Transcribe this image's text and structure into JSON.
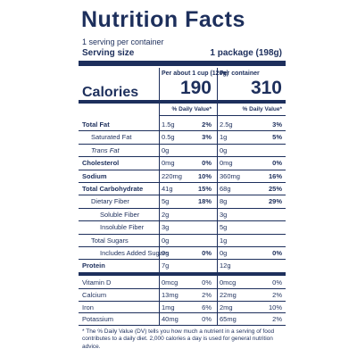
{
  "header": {
    "title": "Nutrition Facts",
    "servings": "1 serving per container",
    "serving_size_label": "Serving size",
    "serving_size": "1 package (198g)"
  },
  "calories_label": "Calories",
  "columns": [
    {
      "heading": "Per about 1 cup (120g)",
      "calories": "190",
      "dv_heading": "% Daily Value*"
    },
    {
      "heading": "Per container",
      "calories": "310",
      "dv_heading": "% Daily Value*"
    }
  ],
  "rows": [
    {
      "label": "Total Fat",
      "values": [
        [
          "1.5g",
          "2%"
        ],
        [
          "2.5g",
          "3%"
        ]
      ]
    },
    {
      "label": "Saturated Fat",
      "values": [
        [
          "0.5g",
          "3%"
        ],
        [
          "1g",
          "5%"
        ]
      ]
    },
    {
      "label": "Trans Fat",
      "values": [
        [
          "0g"
        ],
        [
          "0g"
        ]
      ]
    },
    {
      "label": "Cholesterol",
      "values": [
        [
          "0mg",
          "0%"
        ],
        [
          "0mg",
          "0%"
        ]
      ]
    },
    {
      "label": "Sodium",
      "values": [
        [
          "220mg",
          "10%"
        ],
        [
          "360mg",
          "16%"
        ]
      ]
    },
    {
      "label": "Total Carbohydrate",
      "values": [
        [
          "41g",
          "15%"
        ],
        [
          "68g",
          "25%"
        ]
      ]
    },
    {
      "label": "Dietary Fiber",
      "values": [
        [
          "5g",
          "18%"
        ],
        [
          "8g",
          "29%"
        ]
      ]
    },
    {
      "label": "Soluble Fiber",
      "values": [
        [
          "2g"
        ],
        [
          "3g"
        ]
      ]
    },
    {
      "label": "Insoluble Fiber",
      "values": [
        [
          "3g"
        ],
        [
          "5g"
        ]
      ]
    },
    {
      "label": "Total Sugars",
      "values": [
        [
          "0g"
        ],
        [
          "1g"
        ]
      ]
    },
    {
      "label": "Includes Added Sugars",
      "values": [
        [
          "0g",
          "0%"
        ],
        [
          "0g",
          "0%"
        ]
      ]
    },
    {
      "label": "Protein",
      "values": [
        [
          "7g"
        ],
        [
          "12g"
        ]
      ]
    },
    {
      "label": "Vitamin D",
      "values": [
        [
          "0mcg",
          "0%"
        ],
        [
          "0mcg",
          "0%"
        ]
      ]
    },
    {
      "label": "Calcium",
      "values": [
        [
          "13mg",
          "2%"
        ],
        [
          "22mg",
          "2%"
        ]
      ]
    },
    {
      "label": "Iron",
      "values": [
        [
          "1mg",
          "6%"
        ],
        [
          "2mg",
          "10%"
        ]
      ]
    },
    {
      "label": "Potassium",
      "values": [
        [
          "40mg",
          "0%"
        ],
        [
          "65mg",
          "2%"
        ]
      ]
    }
  ],
  "footnote": "* The % Daily Value (DV) tells you how much a nutrient in a serving of food contributes to a daily diet. 2,000 calories a day is used for general nutrition advice."
}
